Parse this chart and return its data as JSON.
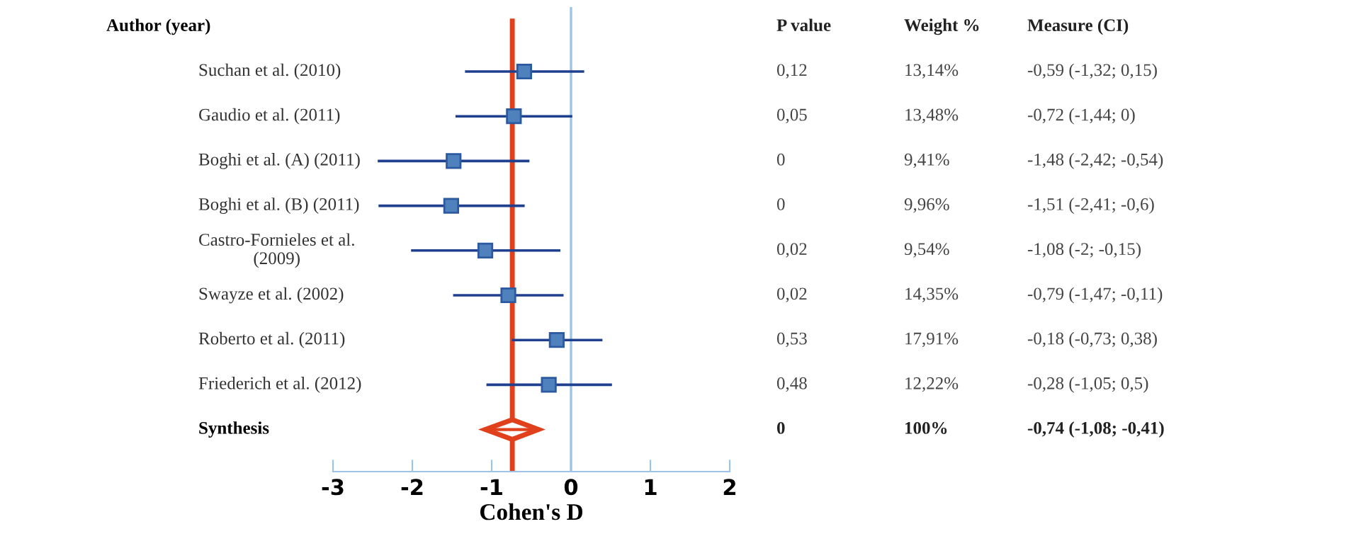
{
  "chart_data": {
    "type": "scatter",
    "orientation": "horizontal",
    "ylabel": "Author (year)",
    "xlabel": "Cohen's D",
    "categories": [
      "Suchan et al. (2010)",
      "Gaudio et al. (2011)",
      "Boghi et al. (A) (2011)",
      "Boghi et al. (B) (2011)",
      "Castro-Fornieles et al.\n(2009)",
      "Swayze et al. (2002)",
      "Roberto et al. (2011)",
      "Friederich et al. (2012)",
      "Synthesis"
    ],
    "series": [
      {
        "color": "#4f81bd",
        "marker": "square",
        "values": [
          -0.59,
          -0.72,
          -1.48,
          -1.51,
          -1.08,
          -0.79,
          -0.18,
          -0.28,
          null
        ],
        "errors": [
          [
            -1.32,
            0.15
          ],
          [
            -1.44,
            0
          ],
          [
            -2.42,
            -0.54
          ],
          [
            -2.41,
            -0.6
          ],
          [
            -2,
            -0.15
          ],
          [
            -1.47,
            -0.11
          ],
          [
            -0.73,
            0.38
          ],
          [
            -1.05,
            0.5
          ],
          null
        ]
      },
      {
        "color": "#e0401c",
        "marker": "diamond",
        "values": [
          null,
          null,
          null,
          null,
          null,
          null,
          null,
          null,
          -0.74
        ],
        "errors": [
          null,
          null,
          null,
          null,
          null,
          null,
          null,
          null,
          [
            -1.08,
            -0.41
          ]
        ]
      }
    ],
    "xlim": [
      -3,
      2
    ],
    "xticks": [
      -3,
      -2,
      -1,
      0,
      1,
      2
    ],
    "ref_lines": [
      {
        "axis": "x",
        "value": 0,
        "color": "#9dc3e6"
      },
      {
        "axis": "x",
        "value": -0.74,
        "color": "#e0401c"
      }
    ],
    "grid": false,
    "legend": false,
    "annotations": [
      "P value",
      "Weight %",
      "Measure (CI)",
      "0,12",
      "13,14%",
      "-0,59 (-1,32; 0,15)",
      "0,05",
      "13,48%",
      "-0,72 (-1,44; 0)",
      "0",
      "9,41%",
      "-1,48 (-2,42; -0,54)",
      "0",
      "9,96%",
      "-1,51 (-2,41; -0,6)",
      "0,02",
      "9,54%",
      "-1,08 (-2; -0,15)",
      "0,02",
      "14,35%",
      "-0,79 (-1,47; -0,11)",
      "0,53",
      "17,91%",
      "-0,18 (-0,73; 0,38)",
      "0,48",
      "12,22%",
      "-0,28 (-1,05; 0,5)",
      "0",
      "100%",
      "-0,74 (-1,08; -0,41)"
    ]
  }
}
